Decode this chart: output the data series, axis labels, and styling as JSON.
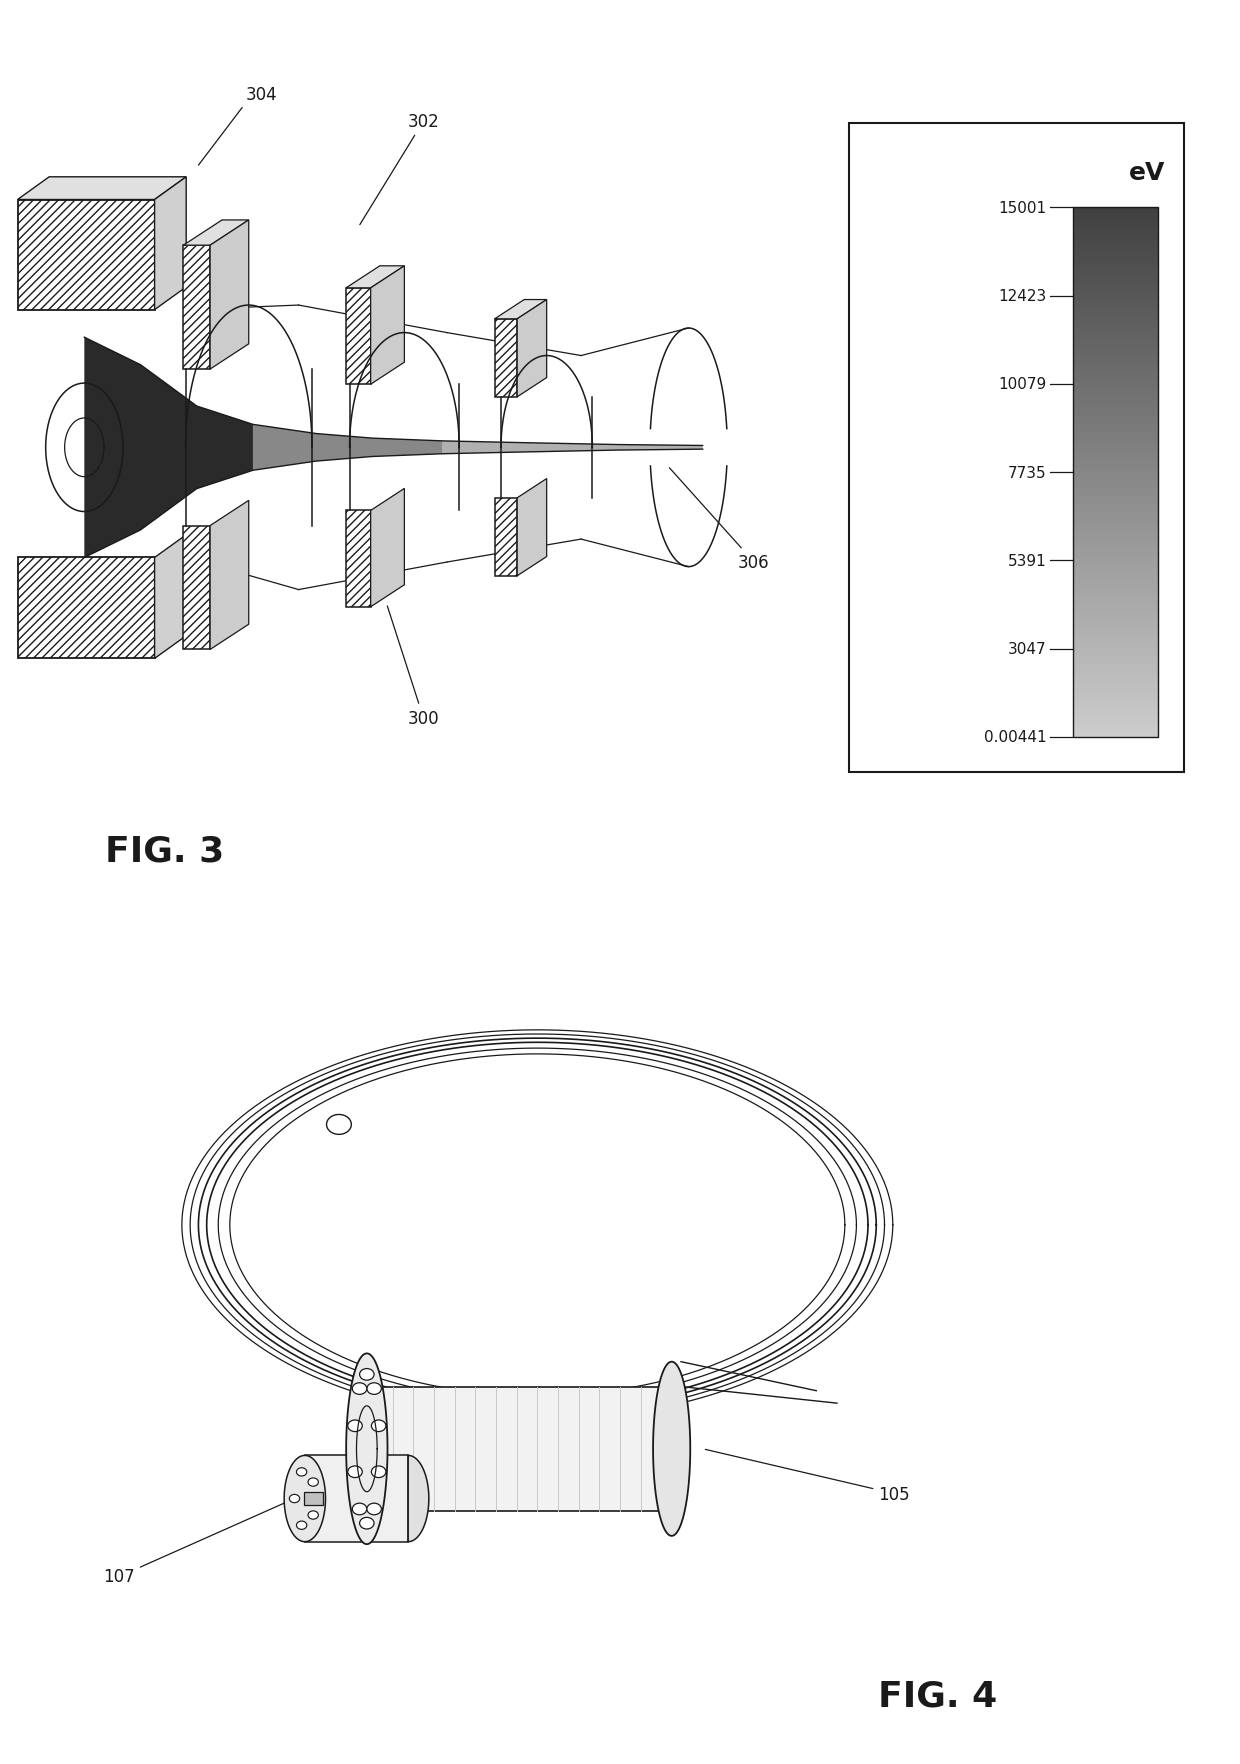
{
  "fig_width": 12.4,
  "fig_height": 17.65,
  "bg_color": "#ffffff",
  "fig3_caption": "FIG. 3",
  "fig4_caption": "FIG. 4",
  "colorbar_title": "eV",
  "colorbar_labels": [
    "15001",
    "12423",
    "10079",
    "7735",
    "5391",
    "3047",
    "0.00441"
  ],
  "label_304": "304",
  "label_302": "302",
  "label_306": "306",
  "label_300": "300",
  "label_105": "105",
  "label_107": "107",
  "line_color": "#1a1a1a"
}
